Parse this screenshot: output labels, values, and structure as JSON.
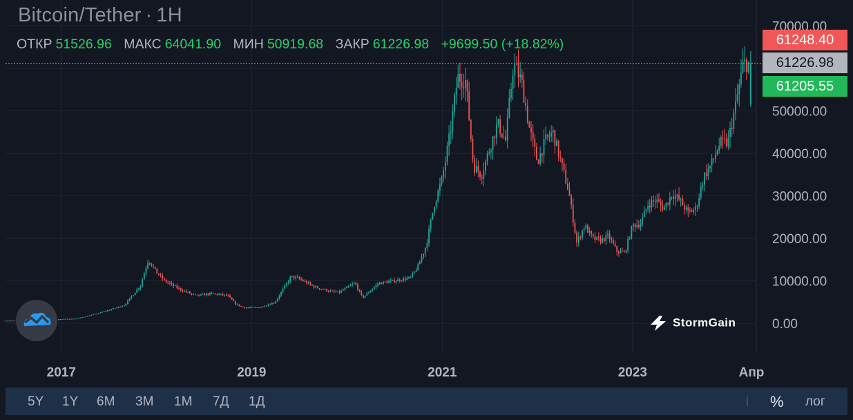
{
  "header": {
    "symbol": "Bitcoin/Tether",
    "separator": "·",
    "interval": "1H",
    "ohlc": [
      {
        "label": "ОТКР",
        "value": "51526.96"
      },
      {
        "label": "МАКС",
        "value": "64041.90"
      },
      {
        "label": "МИН",
        "value": "50919.68"
      },
      {
        "label": "ЗАКР",
        "value": "61226.98"
      },
      {
        "label": "",
        "value": "+9699.50 (+18.82%)"
      }
    ]
  },
  "price_tags": {
    "high": "61248.40",
    "close": "61226.98",
    "low": "61205.55"
  },
  "timeframes": [
    "5Y",
    "1Y",
    "6M",
    "3M",
    "1M",
    "7Д",
    "1Д"
  ],
  "bottom_right": {
    "percent": "%",
    "log": "лог"
  },
  "brand": {
    "name": "StormGain"
  },
  "colors": {
    "background": "#131722",
    "up": "#26a69a",
    "down": "#ef5350",
    "accent_green": "#26d367",
    "grid": "#1f2434"
  },
  "chart_data": {
    "type": "candlestick",
    "title": "Bitcoin/Tether",
    "interval": "1H",
    "x_tick_labels": [
      "2017",
      "2019",
      "2021",
      "2023",
      "Апр"
    ],
    "y_tick_labels": [
      "0.00",
      "10000.00",
      "20000.00",
      "30000.00",
      "40000.00",
      "50000.00",
      "70000.00"
    ],
    "ylim": [
      0,
      70000
    ],
    "grid": true,
    "last_close": 61226.98,
    "series_approx_close": [
      [
        "2016-06",
        600
      ],
      [
        "2016-09",
        650
      ],
      [
        "2016-12",
        900
      ],
      [
        "2017-03",
        1100
      ],
      [
        "2017-06",
        2500
      ],
      [
        "2017-09",
        4300
      ],
      [
        "2017-11",
        9000
      ],
      [
        "2017-12",
        15000
      ],
      [
        "2018-01",
        12000
      ],
      [
        "2018-02",
        10000
      ],
      [
        "2018-04",
        8000
      ],
      [
        "2018-06",
        6500
      ],
      [
        "2018-08",
        7000
      ],
      [
        "2018-10",
        6500
      ],
      [
        "2018-11",
        4500
      ],
      [
        "2018-12",
        3700
      ],
      [
        "2019-02",
        3700
      ],
      [
        "2019-04",
        5000
      ],
      [
        "2019-06",
        11000
      ],
      [
        "2019-07",
        10500
      ],
      [
        "2019-09",
        8500
      ],
      [
        "2019-11",
        7500
      ],
      [
        "2019-12",
        7200
      ],
      [
        "2020-02",
        9500
      ],
      [
        "2020-03",
        6000
      ],
      [
        "2020-05",
        9400
      ],
      [
        "2020-07",
        10000
      ],
      [
        "2020-09",
        10700
      ],
      [
        "2020-10",
        13500
      ],
      [
        "2020-11",
        18500
      ],
      [
        "2020-12",
        28000
      ],
      [
        "2021-01",
        34000
      ],
      [
        "2021-02",
        45000
      ],
      [
        "2021-03",
        58000
      ],
      [
        "2021-04",
        57000
      ],
      [
        "2021-05",
        37000
      ],
      [
        "2021-06",
        35000
      ],
      [
        "2021-07",
        41000
      ],
      [
        "2021-08",
        47000
      ],
      [
        "2021-09",
        43000
      ],
      [
        "2021-10",
        61000
      ],
      [
        "2021-11",
        57000
      ],
      [
        "2021-12",
        46000
      ],
      [
        "2022-01",
        38000
      ],
      [
        "2022-02",
        43000
      ],
      [
        "2022-03",
        45000
      ],
      [
        "2022-04",
        38000
      ],
      [
        "2022-05",
        31000
      ],
      [
        "2022-06",
        19000
      ],
      [
        "2022-07",
        23000
      ],
      [
        "2022-08",
        20000
      ],
      [
        "2022-09",
        19500
      ],
      [
        "2022-10",
        20500
      ],
      [
        "2022-11",
        17000
      ],
      [
        "2022-12",
        16500
      ],
      [
        "2023-01",
        23000
      ],
      [
        "2023-02",
        23500
      ],
      [
        "2023-03",
        28000
      ],
      [
        "2023-04",
        29000
      ],
      [
        "2023-05",
        27000
      ],
      [
        "2023-06",
        30500
      ],
      [
        "2023-07",
        29000
      ],
      [
        "2023-08",
        26000
      ],
      [
        "2023-09",
        27000
      ],
      [
        "2023-10",
        34500
      ],
      [
        "2023-11",
        37700
      ],
      [
        "2023-12",
        42300
      ],
      [
        "2024-01",
        42500
      ],
      [
        "2024-02",
        51500
      ],
      [
        "2024-03",
        61227
      ]
    ]
  }
}
